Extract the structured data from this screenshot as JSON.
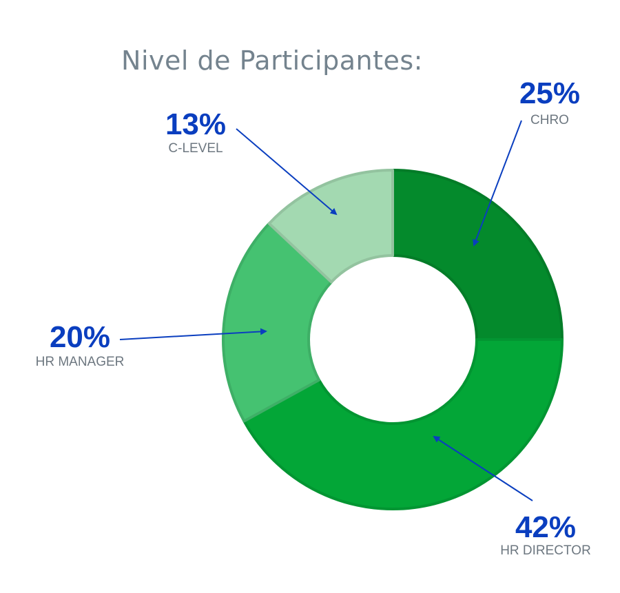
{
  "chart_data": {
    "type": "pie",
    "title": "Nivel de Participantes:",
    "categories": [
      "CHRO",
      "HR DIRECTOR",
      "HR MANAGER",
      "C-LEVEL"
    ],
    "values": [
      25,
      42,
      20,
      13
    ],
    "value_labels": [
      "25%",
      "42%",
      "20%",
      "13%"
    ],
    "colors": [
      "#048a2c",
      "#03a637",
      "#45c271",
      "#a3d9b1"
    ],
    "donut": true,
    "label_color": "#0a3ebf",
    "arrow_color": "#0a3ebf"
  }
}
